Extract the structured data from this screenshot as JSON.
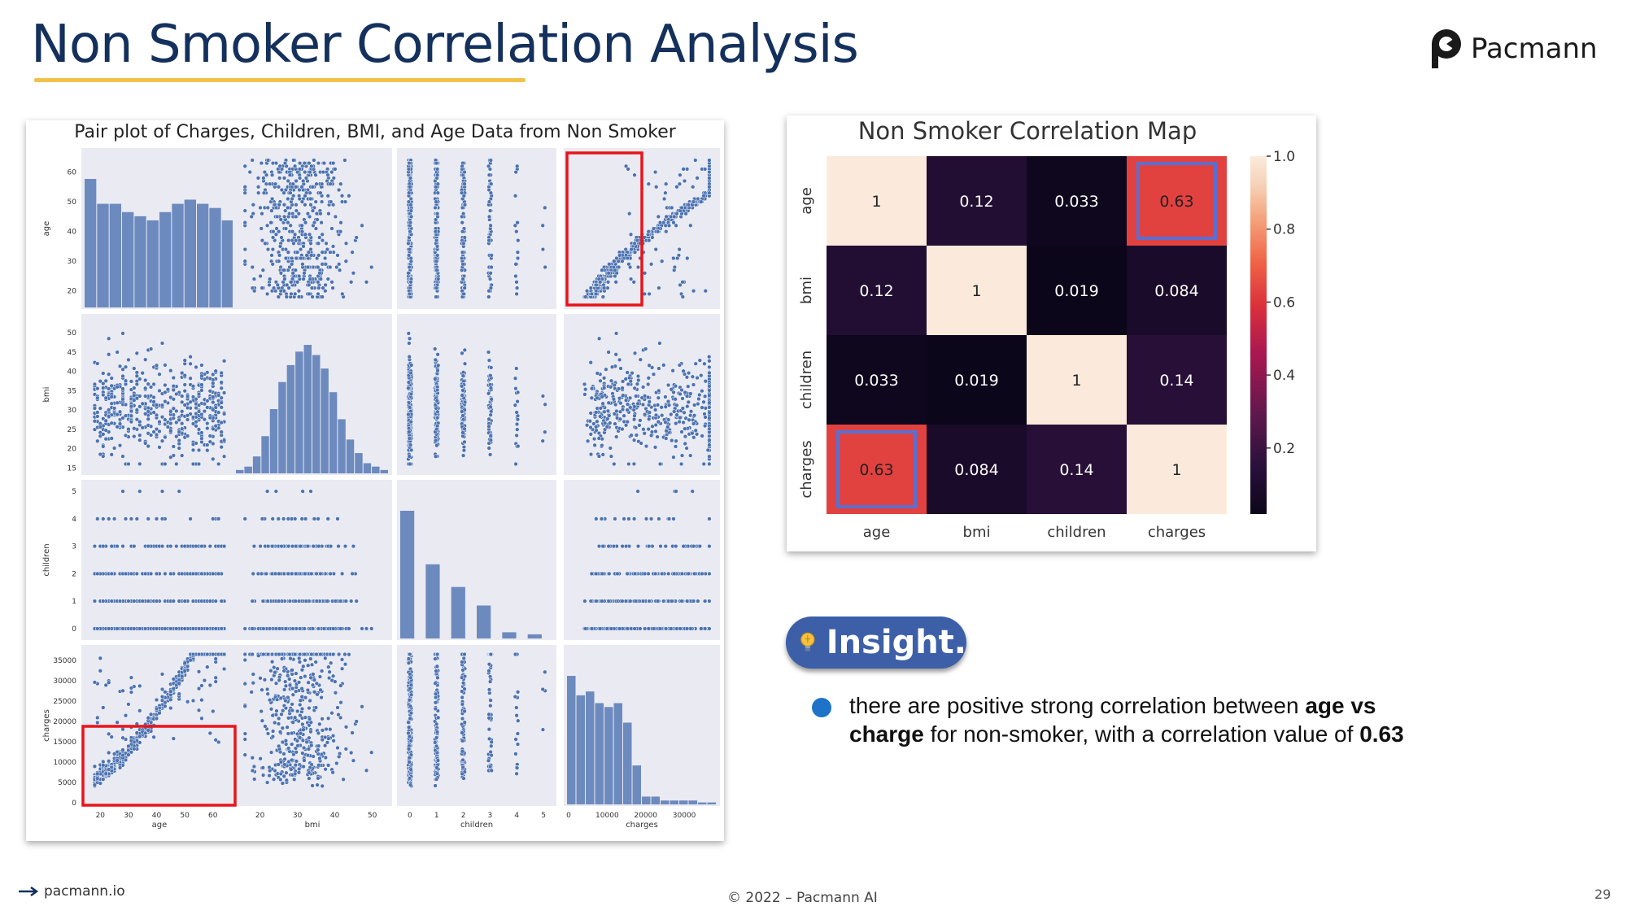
{
  "page": {
    "title": "Non Smoker Correlation Analysis",
    "logo_text": "Pacmann",
    "footer_link": "pacmann.io",
    "footer_copyright": "© 2022 – Pacmann AI",
    "page_number": "29"
  },
  "insight": {
    "label": "Insight.",
    "bullet_part1": "there are positive strong correlation between ",
    "bullet_bold1": "age vs charge",
    "bullet_part2": " for non-smoker, with a correlation value of ",
    "bullet_bold2": "0.63"
  },
  "colors": {
    "title": "#14305c",
    "accent_underline": "#f0c24b",
    "pill": "#3c5fa8",
    "bullet": "#1e73c8",
    "scatter": "#4c72b0",
    "highlight_box": "#e8141a",
    "heatmap_box": "#5b6fd0"
  },
  "icons": [
    "pacmann-logo-icon",
    "lightbulb-icon",
    "arrow-right-icon"
  ],
  "chart_data": [
    {
      "type": "scatter",
      "title": "Pair plot of Charges, Children, BMI, and Age Data from Non Smoker",
      "variables": [
        "age",
        "bmi",
        "children",
        "charges"
      ],
      "axis_ticks": {
        "age": [
          "20",
          "30",
          "40",
          "50",
          "60"
        ],
        "bmi": [
          "20",
          "30",
          "40",
          "50"
        ],
        "bmi_y": [
          "15",
          "20",
          "25",
          "30",
          "35",
          "40",
          "45",
          "50"
        ],
        "children": [
          "0",
          "1",
          "2",
          "3",
          "4",
          "5"
        ],
        "charges": [
          "0",
          "10000",
          "20000",
          "30000"
        ],
        "charges_y": [
          "0",
          "5000",
          "10000",
          "15000",
          "20000",
          "25000",
          "30000",
          "35000"
        ]
      },
      "ranges": {
        "age": [
          15,
          67
        ],
        "bmi": [
          14,
          54
        ],
        "children": [
          -0.3,
          5.3
        ],
        "charges": [
          0,
          38000
        ]
      },
      "histograms": {
        "age": [
          31,
          25,
          25,
          23,
          22,
          21,
          23,
          25,
          26,
          25,
          24,
          21
        ],
        "bmi": [
          1,
          2,
          5,
          11,
          19,
          27,
          32,
          36,
          38,
          35,
          31,
          24,
          16,
          10,
          6,
          3,
          2,
          1
        ],
        "children": [
          62,
          36,
          25,
          16,
          3,
          2
        ],
        "charges": [
          33,
          28,
          29,
          26,
          25,
          26,
          21,
          10,
          2,
          2,
          1,
          1,
          1,
          1,
          0.5,
          0.5
        ]
      },
      "highlighted_pairs": [
        [
          "age",
          "charges"
        ],
        [
          "charges",
          "age"
        ]
      ]
    },
    {
      "type": "heatmap",
      "title": "Non Smoker Correlation Map",
      "labels": [
        "age",
        "bmi",
        "children",
        "charges"
      ],
      "values": [
        [
          1,
          0.12,
          0.033,
          0.63
        ],
        [
          0.12,
          1,
          0.019,
          0.084
        ],
        [
          0.033,
          0.019,
          1,
          0.14
        ],
        [
          0.63,
          0.084,
          0.14,
          1
        ]
      ],
      "display": [
        [
          "1",
          "0.12",
          "0.033",
          "0.63"
        ],
        [
          "0.12",
          "1",
          "0.019",
          "0.084"
        ],
        [
          "0.033",
          "0.019",
          "1",
          "0.14"
        ],
        [
          "0.63",
          "0.084",
          "0.14",
          "1"
        ]
      ],
      "colorbar_ticks": [
        "1.0",
        "0.8",
        "0.6",
        "0.4",
        "0.2"
      ],
      "colorbar_range": [
        0.019,
        1
      ],
      "highlighted_cells": [
        [
          0,
          3
        ],
        [
          3,
          0
        ]
      ]
    }
  ]
}
